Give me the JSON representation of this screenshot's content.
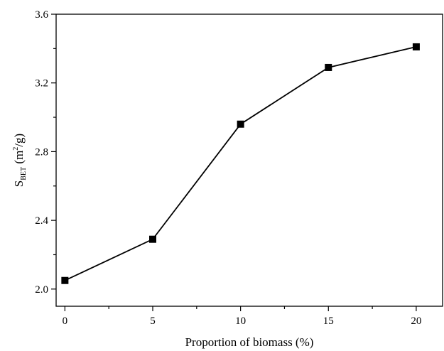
{
  "chart_data": {
    "type": "line",
    "title": "",
    "x": [
      0,
      5,
      10,
      15,
      20
    ],
    "y": [
      2.05,
      2.29,
      2.96,
      3.29,
      3.41
    ],
    "xlim": [
      -0.5,
      21.5
    ],
    "ylim": [
      1.9,
      3.6
    ],
    "x_ticks": [
      0,
      5,
      10,
      15,
      20
    ],
    "x_tick_labels": [
      "0",
      "5",
      "10",
      "15",
      "20"
    ],
    "x_minor_ticks": [
      2.5,
      7.5,
      12.5,
      17.5
    ],
    "y_ticks": [
      2.0,
      2.4,
      2.8,
      3.2,
      3.6
    ],
    "y_tick_labels": [
      "2.0",
      "2.4",
      "2.8",
      "3.2",
      "3.6"
    ],
    "y_minor_ticks": [
      2.2,
      2.6,
      3.0,
      3.4
    ],
    "xlabel": "Proportion of biomass (%)",
    "ylabel": {
      "main": "S",
      "subscript": "BET",
      "unit_open": " (m",
      "superscript": "2",
      "unit_close": "/g)"
    },
    "marker": "square",
    "color": "#000000",
    "grid": false,
    "legend": "none"
  }
}
